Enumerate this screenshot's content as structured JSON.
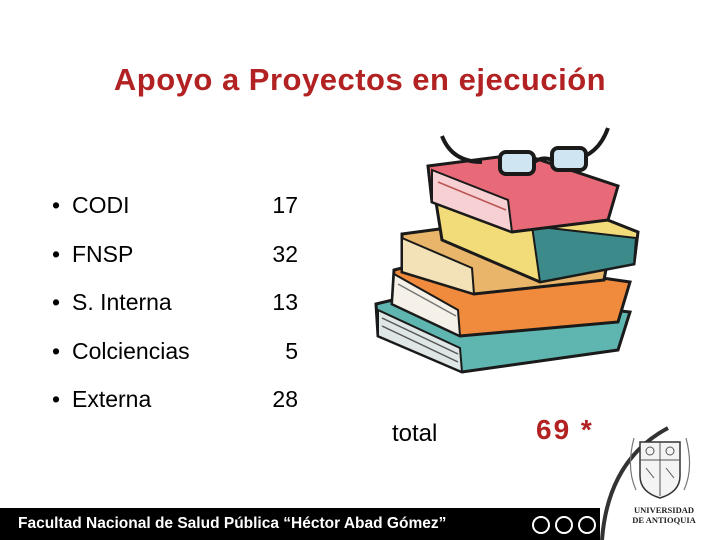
{
  "title": "Apoyo a Proyectos en ejecución",
  "items": [
    {
      "bullet": "•",
      "label": "CODI",
      "value": "17"
    },
    {
      "bullet": "•",
      "label": "FNSP",
      "value": "32"
    },
    {
      "bullet": "•",
      "label": "S. Interna",
      "value": "13"
    },
    {
      "bullet": "•",
      "label": "Colciencias",
      "value": "5"
    },
    {
      "bullet": "•",
      "label": "Externa",
      "value": "28"
    }
  ],
  "total": {
    "label": "total",
    "value": "69 *"
  },
  "footer": {
    "text": "Facultad Nacional de Salud Pública “Héctor Abad Gómez”"
  },
  "logo": {
    "line1": "UNIVERSIDAD",
    "line2": "DE ANTIOQUIA"
  },
  "colors": {
    "title": "#b22222",
    "footer_bg": "#000000",
    "footer_text": "#ffffff"
  },
  "icons": {
    "illustration": "stacked-books-with-glasses",
    "logo": "university-seal"
  }
}
